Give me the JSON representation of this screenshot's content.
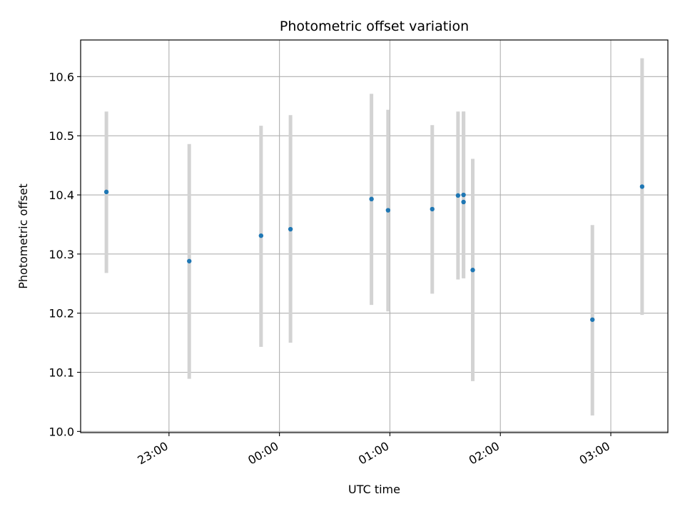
{
  "chart_data": {
    "type": "scatter",
    "title": "Photometric offset variation",
    "xlabel": "UTC time",
    "ylabel": "Photometric offset",
    "x_axis_kind": "time",
    "xlim": [
      "22:12",
      "03:31"
    ],
    "ylim": [
      9.998,
      10.662
    ],
    "grid": true,
    "legend": "none",
    "x_ticks": [
      "23:00",
      "00:00",
      "01:00",
      "02:00",
      "03:00"
    ],
    "y_ticks": [
      10.0,
      10.1,
      10.2,
      10.3,
      10.4,
      10.5,
      10.6
    ],
    "point_color": "#1f77b4",
    "errorbar_color": "#d3d3d3",
    "points": [
      {
        "x": "22:26",
        "y": 10.405,
        "low": 10.268,
        "high": 10.541
      },
      {
        "x": "23:11",
        "y": 10.288,
        "low": 10.089,
        "high": 10.486
      },
      {
        "x": "23:50",
        "y": 10.331,
        "low": 10.143,
        "high": 10.517
      },
      {
        "x": "00:06",
        "y": 10.342,
        "low": 10.15,
        "high": 10.535
      },
      {
        "x": "00:50",
        "y": 10.393,
        "low": 10.214,
        "high": 10.571
      },
      {
        "x": "00:59",
        "y": 10.374,
        "low": 10.203,
        "high": 10.544
      },
      {
        "x": "01:23",
        "y": 10.376,
        "low": 10.233,
        "high": 10.518
      },
      {
        "x": "01:37",
        "y": 10.399,
        "low": 10.257,
        "high": 10.541
      },
      {
        "x": "01:40",
        "y": 10.4,
        "low": 10.259,
        "high": 10.541
      },
      {
        "x": "01:40",
        "y": 10.388,
        "low": 10.259,
        "high": 10.541
      },
      {
        "x": "01:45",
        "y": 10.273,
        "low": 10.085,
        "high": 10.461
      },
      {
        "x": "02:50",
        "y": 10.189,
        "low": 10.027,
        "high": 10.349
      },
      {
        "x": "03:17",
        "y": 10.414,
        "low": 10.197,
        "high": 10.631
      }
    ]
  }
}
